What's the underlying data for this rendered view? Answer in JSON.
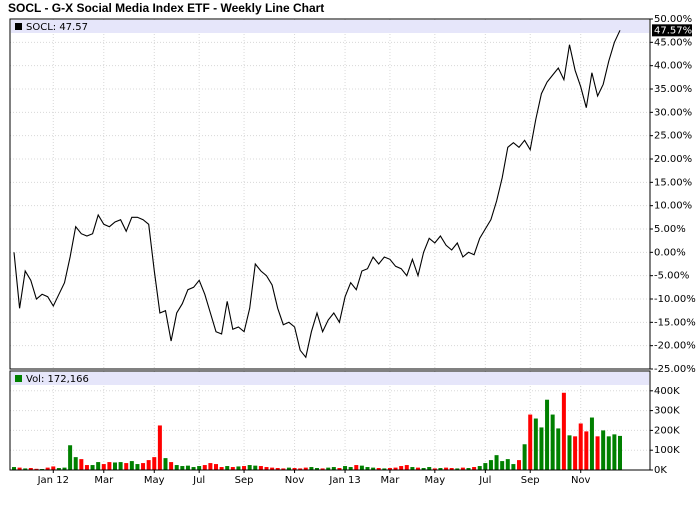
{
  "chart_data": [
    {
      "type": "line",
      "title": "SOCL - G-X Social Media Index ETF - Weekly Line Chart",
      "categories": [
        null,
        null,
        null,
        null,
        null,
        null,
        null,
        "Jan 12",
        null,
        null,
        null,
        null,
        null,
        null,
        null,
        null,
        "Mar",
        null,
        null,
        null,
        null,
        null,
        null,
        null,
        null,
        "May",
        null,
        null,
        null,
        null,
        null,
        null,
        null,
        "Jul",
        null,
        null,
        null,
        null,
        null,
        null,
        null,
        "Sep",
        null,
        null,
        null,
        null,
        null,
        null,
        null,
        null,
        "Nov",
        null,
        null,
        null,
        null,
        null,
        null,
        null,
        null,
        "Jan 13",
        null,
        null,
        null,
        null,
        null,
        null,
        null,
        "Mar",
        null,
        null,
        null,
        null,
        null,
        null,
        null,
        "May",
        null,
        null,
        null,
        null,
        null,
        null,
        null,
        null,
        "Jul",
        null,
        null,
        null,
        null,
        null,
        null,
        null,
        "Sep",
        null,
        null,
        null,
        null,
        null,
        null,
        null,
        null,
        "Nov",
        null,
        null,
        null,
        null,
        null,
        null,
        null
      ],
      "series": [
        {
          "name": "SOCL: 47.57",
          "color": "#000000",
          "values": [
            0,
            -12,
            -4,
            -6,
            -10,
            -9,
            -9.5,
            -11.5,
            -9,
            -6.5,
            -1,
            5.5,
            4,
            3.5,
            4,
            8,
            6,
            5.5,
            6.5,
            7,
            4.5,
            7.5,
            7.5,
            7,
            6,
            -4,
            -13,
            -12.5,
            -19,
            -13,
            -11,
            -8,
            -7.5,
            -6,
            -9,
            -13,
            -17,
            -17.5,
            -10.5,
            -16.5,
            -16,
            -17,
            -12,
            -2.5,
            -4,
            -5,
            -7,
            -12,
            -15.5,
            -15,
            -16,
            -21,
            -22.5,
            -17,
            -13,
            -17,
            -14.5,
            -13,
            -15,
            -9.5,
            -6.5,
            -8,
            -4,
            -3.5,
            -1,
            -2.5,
            -1,
            -1.5,
            -3,
            -3.5,
            -5,
            -1.5,
            -5,
            0,
            3,
            2,
            3.5,
            1.5,
            0.5,
            2,
            -1,
            0,
            -0.5,
            3,
            5,
            7,
            11,
            16,
            22.5,
            23.5,
            22.5,
            24,
            22,
            28.5,
            34,
            36.5,
            38,
            39.5,
            37,
            44.5,
            39,
            35.5,
            31,
            38.5,
            33.5,
            36,
            41,
            45,
            47.57
          ]
        }
      ],
      "last_value_label": "47.57%",
      "ylim": [
        -25,
        50
      ],
      "yticks": [
        {
          "value": 50,
          "label": "50.00%"
        },
        {
          "value": 45,
          "label": "45.00%"
        },
        {
          "value": 40,
          "label": "40.00%"
        },
        {
          "value": 35,
          "label": "35.00%"
        },
        {
          "value": 30,
          "label": "30.00%"
        },
        {
          "value": 25,
          "label": "25.00%"
        },
        {
          "value": 20,
          "label": "20.00%"
        },
        {
          "value": 15,
          "label": "15.00%"
        },
        {
          "value": 10,
          "label": "10.00%"
        },
        {
          "value": 5,
          "label": "5.00%"
        },
        {
          "value": 0,
          "label": "0.00%"
        },
        {
          "value": -5,
          "label": "-5.00%"
        },
        {
          "value": -10,
          "label": "-10.00%"
        },
        {
          "value": -15,
          "label": "-15.00%"
        },
        {
          "value": -20,
          "label": "-20.00%"
        },
        {
          "value": -25,
          "label": "-25.00%"
        }
      ],
      "grid": true
    },
    {
      "type": "bar",
      "series": [
        {
          "name": "Vol: 172,166",
          "values": [
            15000,
            12000,
            8000,
            10000,
            6000,
            5000,
            12000,
            18000,
            10000,
            12000,
            125000,
            65000,
            55000,
            25000,
            25000,
            40000,
            30000,
            40000,
            38000,
            40000,
            35000,
            45000,
            30000,
            35000,
            50000,
            65000,
            225000,
            60000,
            40000,
            25000,
            20000,
            22000,
            15000,
            20000,
            25000,
            35000,
            30000,
            15000,
            20000,
            15000,
            18000,
            20000,
            25000,
            22000,
            20000,
            15000,
            12000,
            10000,
            8000,
            12000,
            10000,
            8000,
            12000,
            15000,
            10000,
            8000,
            12000,
            15000,
            10000,
            20000,
            15000,
            25000,
            22000,
            15000,
            12000,
            10000,
            8000,
            10000,
            12000,
            20000,
            25000,
            15000,
            12000,
            10000,
            15000,
            8000,
            10000,
            12000,
            10000,
            8000,
            12000,
            10000,
            15000,
            20000,
            35000,
            50000,
            75000,
            45000,
            55000,
            30000,
            50000,
            130000,
            280000,
            260000,
            215000,
            355000,
            280000,
            210000,
            390000,
            175000,
            170000,
            235000,
            195000,
            265000,
            170000,
            200000,
            170000,
            180000,
            172166
          ]
        }
      ],
      "up_color": "#008000",
      "down_color": "#ff0000",
      "ylim": [
        0,
        500000
      ],
      "yticks": [
        {
          "value": 400000,
          "label": "400K"
        },
        {
          "value": 300000,
          "label": "300K"
        },
        {
          "value": 200000,
          "label": "200K"
        },
        {
          "value": 100000,
          "label": "100K"
        },
        {
          "value": 0,
          "label": "0K"
        }
      ],
      "grid": true
    }
  ]
}
